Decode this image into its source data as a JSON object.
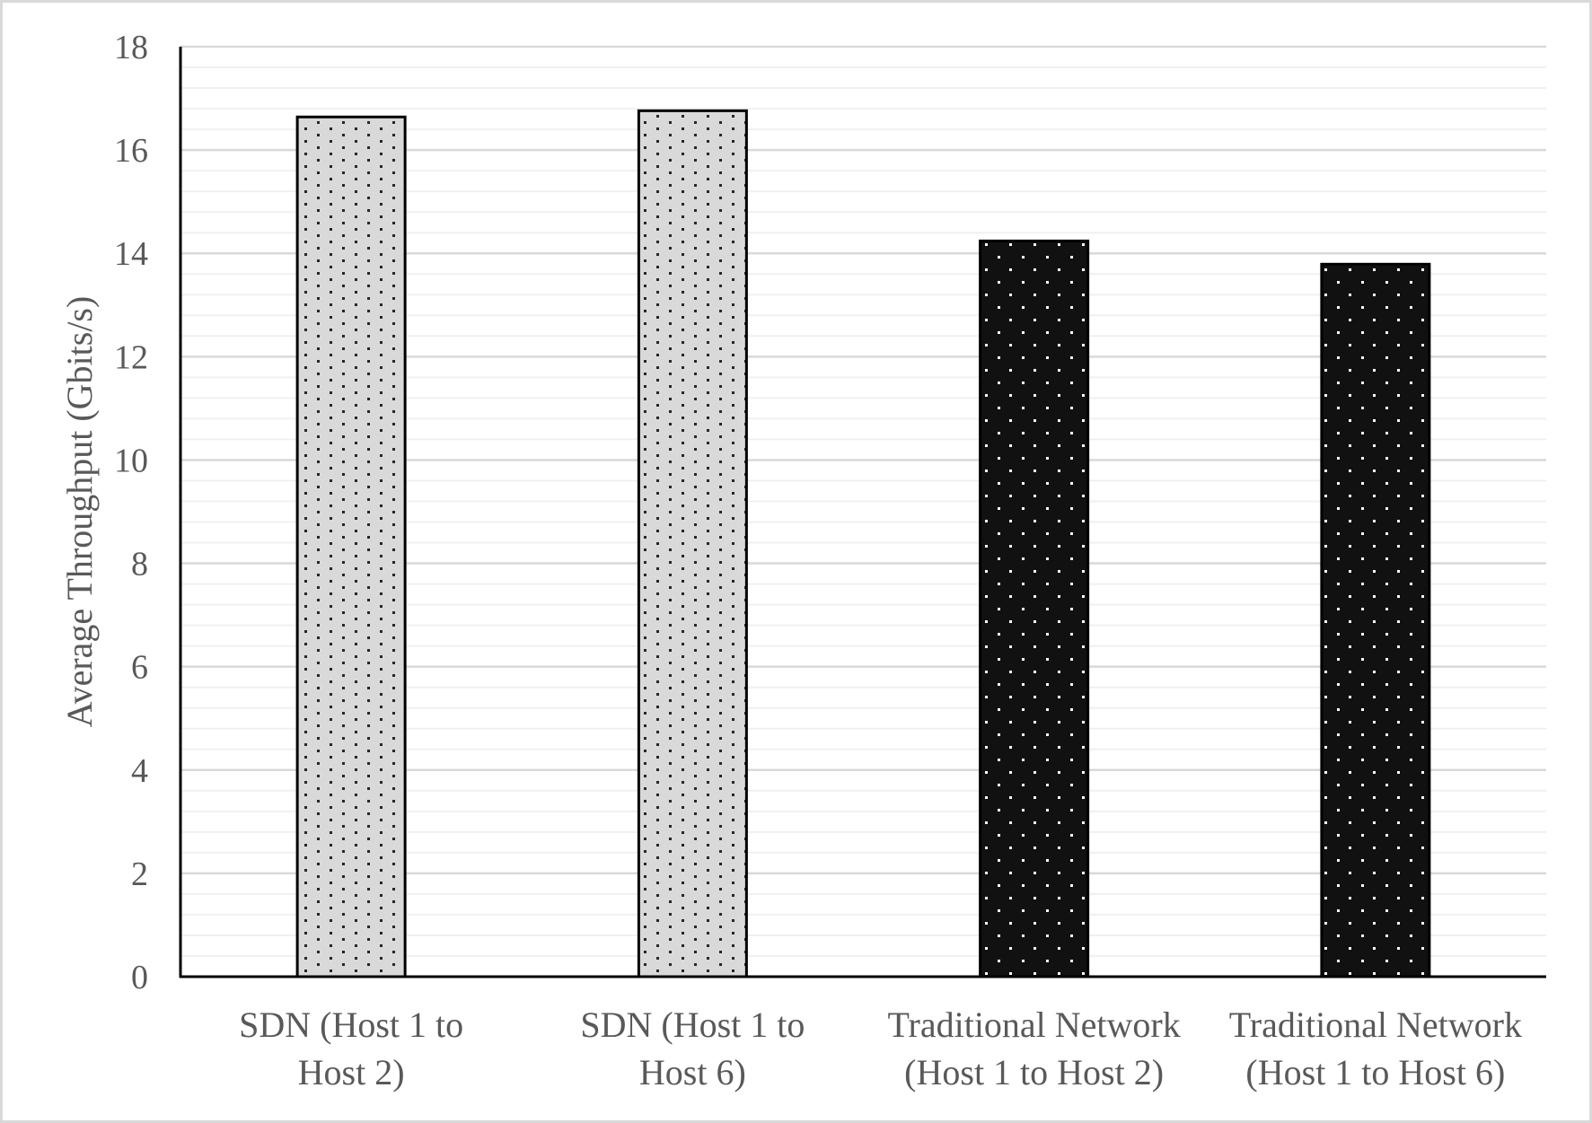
{
  "chart_data": {
    "type": "bar",
    "title": "",
    "xlabel": "",
    "ylabel": "Average Throughput (Gbits/s)",
    "ylim": [
      0,
      18
    ],
    "yticks": [
      0,
      2,
      4,
      6,
      8,
      10,
      12,
      14,
      16,
      18
    ],
    "minor_gridline_step": 0.4,
    "grid": true,
    "legend": null,
    "categories": [
      [
        "SDN (Host 1 to",
        "Host 2)"
      ],
      [
        "SDN (Host 1 to",
        "Host 6)"
      ],
      [
        "Traditional Network",
        "(Host 1 to Host 2)"
      ],
      [
        "Traditional Network",
        "(Host 1 to Host 6)"
      ]
    ],
    "category_names": [
      "SDN (Host 1 to Host 2)",
      "SDN (Host 1 to Host 6)",
      "Traditional Network (Host 1 to Host 2)",
      "Traditional Network (Host 1 to Host 6)"
    ],
    "values": [
      16.64,
      16.76,
      14.24,
      13.79
    ],
    "bar_styles": [
      "light-dotted",
      "light-dotted",
      "dark-dotted",
      "dark-dotted"
    ]
  },
  "colors": {
    "light_fill": "#d9d9d9",
    "light_dot": "#262626",
    "dark_fill": "#111111",
    "dark_dot": "#ffffff",
    "major_grid": "#d9d9d9",
    "minor_grid": "#f0f0f0",
    "text": "#595959",
    "axis": "#000000"
  }
}
